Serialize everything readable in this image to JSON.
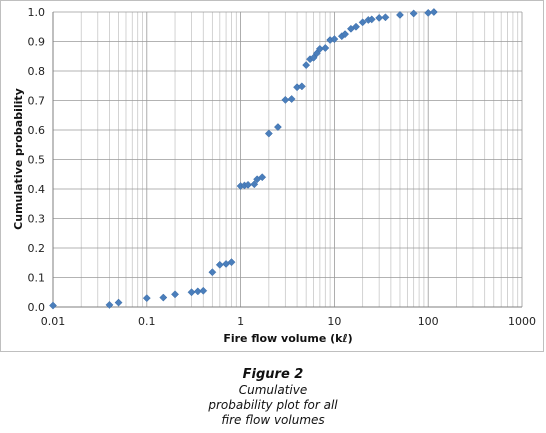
{
  "chart_data": {
    "type": "scatter",
    "xlabel": "Fire flow volume (kℓ)",
    "ylabel": "Cumulative probability",
    "xscale": "log",
    "xlim": [
      0.01,
      1000
    ],
    "ylim": [
      0,
      1
    ],
    "x_ticks": [
      "0.01",
      "0.1",
      "1",
      "10",
      "100",
      "1000"
    ],
    "y_ticks": [
      "0.0",
      "0.1",
      "0.2",
      "0.3",
      "0.4",
      "0.5",
      "0.6",
      "0.7",
      "0.8",
      "0.9",
      "1.0"
    ],
    "grid": "vertical log minor and major gridlines, horizontal gridlines at 0.1",
    "marker": "diamond",
    "marker_color": "#4a7ebb",
    "series": [
      {
        "points": [
          [
            0.01,
            0.005
          ],
          [
            0.04,
            0.007
          ],
          [
            0.05,
            0.015
          ],
          [
            0.1,
            0.03
          ],
          [
            0.15,
            0.032
          ],
          [
            0.2,
            0.043
          ],
          [
            0.3,
            0.05
          ],
          [
            0.35,
            0.053
          ],
          [
            0.4,
            0.055
          ],
          [
            0.5,
            0.118
          ],
          [
            0.6,
            0.143
          ],
          [
            0.7,
            0.146
          ],
          [
            0.8,
            0.152
          ],
          [
            1.0,
            0.41
          ],
          [
            1.1,
            0.412
          ],
          [
            1.2,
            0.414
          ],
          [
            1.4,
            0.416
          ],
          [
            1.5,
            0.433
          ],
          [
            1.7,
            0.44
          ],
          [
            2.0,
            0.588
          ],
          [
            2.5,
            0.61
          ],
          [
            3.0,
            0.702
          ],
          [
            3.5,
            0.705
          ],
          [
            4.0,
            0.745
          ],
          [
            4.5,
            0.748
          ],
          [
            5.0,
            0.82
          ],
          [
            5.5,
            0.84
          ],
          [
            6.0,
            0.845
          ],
          [
            6.5,
            0.86
          ],
          [
            7.0,
            0.875
          ],
          [
            8.0,
            0.878
          ],
          [
            9.0,
            0.905
          ],
          [
            10.0,
            0.908
          ],
          [
            12.0,
            0.918
          ],
          [
            13.0,
            0.925
          ],
          [
            15.0,
            0.943
          ],
          [
            17.0,
            0.95
          ],
          [
            20.0,
            0.965
          ],
          [
            23.0,
            0.973
          ],
          [
            25.0,
            0.975
          ],
          [
            30.0,
            0.98
          ],
          [
            35.0,
            0.982
          ],
          [
            50.0,
            0.99
          ],
          [
            70.0,
            0.995
          ],
          [
            100.0,
            0.997
          ],
          [
            115.0,
            1.0
          ]
        ]
      }
    ]
  },
  "caption": {
    "label": "Figure 2",
    "lines": [
      "Cumulative",
      "probability plot for all",
      "fire flow volumes"
    ]
  }
}
